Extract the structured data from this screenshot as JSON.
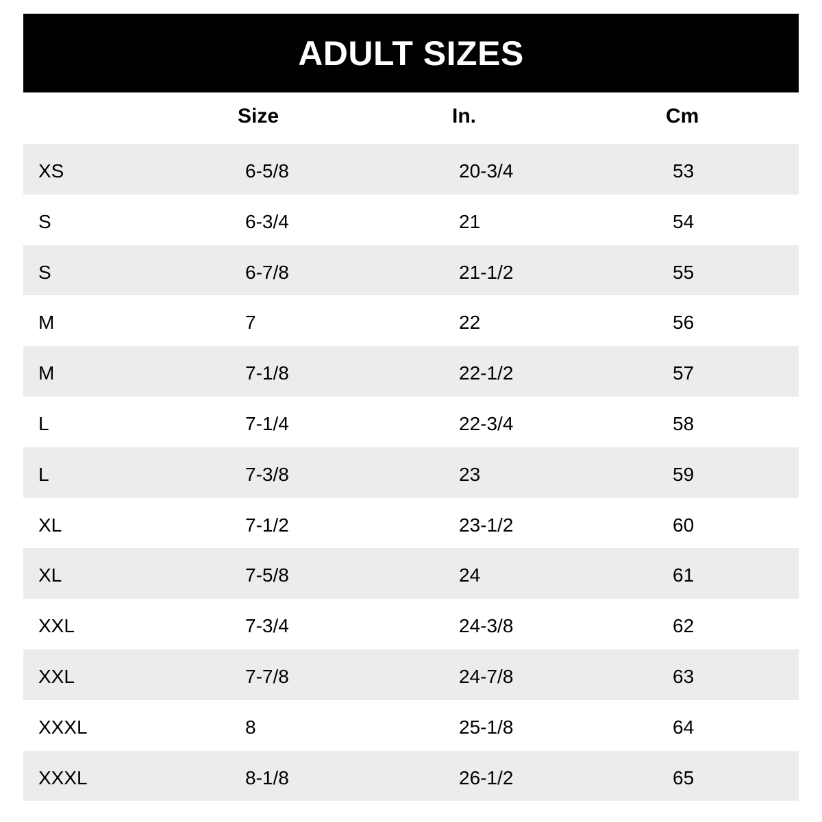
{
  "title": "ADULT SIZES",
  "headers": [
    "",
    "Size",
    "In.",
    "Cm"
  ],
  "rows": [
    [
      "XS",
      "6-5/8",
      "20-3/4",
      "53"
    ],
    [
      "S",
      "6-3/4",
      "21",
      "54"
    ],
    [
      "S",
      "6-7/8",
      "21-1/2",
      "55"
    ],
    [
      "M",
      "7",
      "22",
      "56"
    ],
    [
      "M",
      "7-1/8",
      "22-1/2",
      "57"
    ],
    [
      "L",
      "7-1/4",
      "22-3/4",
      "58"
    ],
    [
      "L",
      "7-3/8",
      "23",
      "59"
    ],
    [
      "XL",
      "7-1/2",
      "23-1/2",
      "60"
    ],
    [
      "XL",
      "7-5/8",
      "24",
      "61"
    ],
    [
      "XXL",
      "7-3/4",
      "24-3/8",
      "62"
    ],
    [
      "XXL",
      "7-7/8",
      "24-7/8",
      "63"
    ],
    [
      "XXXL",
      "8",
      "25-1/8",
      "64"
    ],
    [
      "XXXL",
      "8-1/8",
      "26-1/2",
      "65"
    ]
  ],
  "colors": {
    "banner": "#000000",
    "stripe": "#ececec"
  }
}
